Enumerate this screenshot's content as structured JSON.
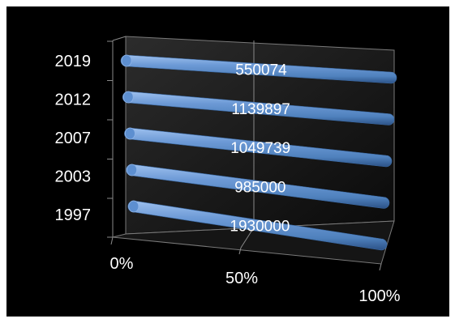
{
  "chart_data": {
    "type": "bar",
    "orientation": "horizontal",
    "style": "3d-cylinder",
    "stacked": "100%",
    "title": "",
    "xlabel": "",
    "ylabel": "",
    "categories": [
      "1997",
      "2003",
      "2007",
      "2012",
      "2019"
    ],
    "series": [
      {
        "values": [
          1930000,
          985000,
          1049739,
          1139897,
          550074
        ]
      }
    ],
    "data_labels": [
      "1930000",
      "985000",
      "1049739",
      "1139897",
      "550074"
    ],
    "x_ticks": [
      "0%",
      "50%",
      "100%"
    ],
    "xlim": [
      0,
      100
    ],
    "grid": true,
    "legend": "none",
    "colors": {
      "background": "#000000",
      "bar": "#4f81bd",
      "bar_highlight": "#9dc0ee",
      "bar_shadow": "#2c5287",
      "text": "#ffffff",
      "grid": "#8a8a8a",
      "wall": "#222222"
    }
  }
}
